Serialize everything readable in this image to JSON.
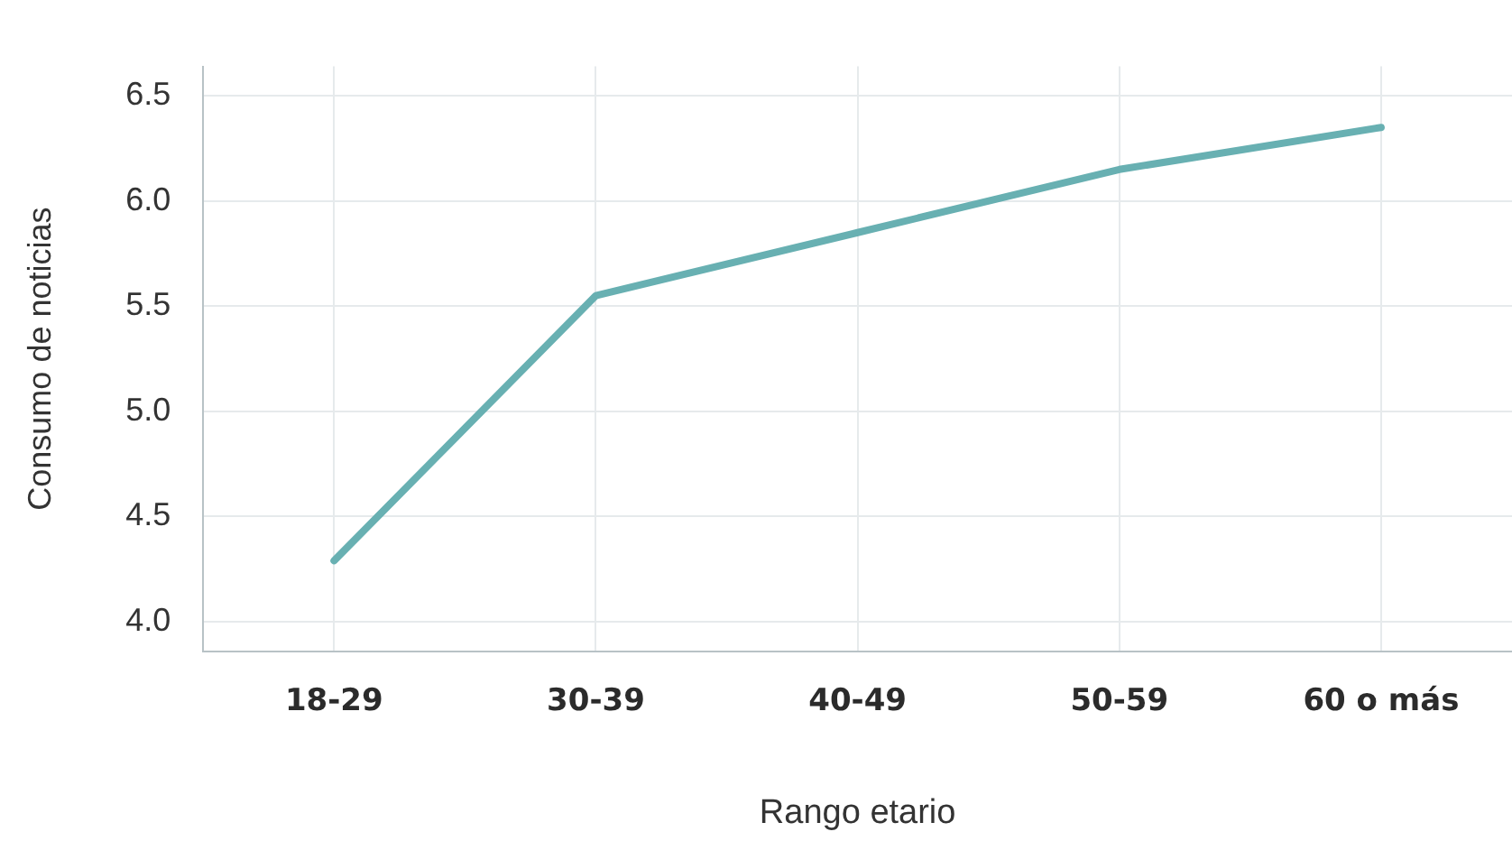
{
  "chart_data": {
    "type": "line",
    "xlabel": "Rango etario",
    "ylabel": "Consumo de noticias",
    "categories": [
      "18-29",
      "30-39",
      "40-49",
      "50-59",
      "60 o más"
    ],
    "series": [
      {
        "color": "#68b0b2",
        "values": [
          4.29,
          5.55,
          5.85,
          6.15,
          6.35
        ]
      }
    ],
    "ylim": [
      3.86,
      6.64
    ],
    "yticks": [
      {
        "value": 4,
        "label": "4.0"
      },
      4.5,
      {
        "value": 5,
        "label": "5.0"
      },
      5.5,
      {
        "value": 6,
        "label": "6.0"
      },
      6.5
    ],
    "grid": true,
    "legend": false,
    "marker": "none",
    "line_style": "solid"
  }
}
